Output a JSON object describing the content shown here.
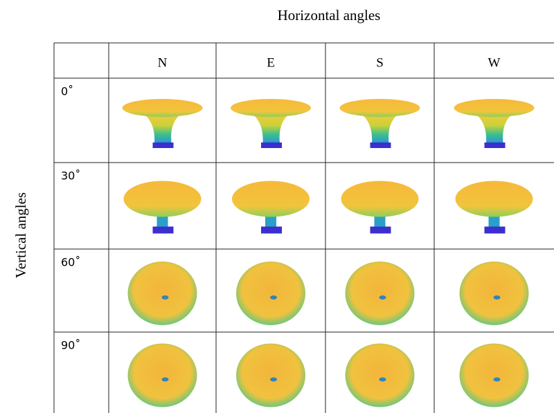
{
  "header": {
    "title": "Horizontal angles"
  },
  "side_label": "Vertical angles",
  "table": {
    "columns": [
      "N",
      "E",
      "S",
      "W"
    ],
    "rows": [
      "0˚",
      "30˚",
      "60˚",
      "90˚"
    ]
  }
}
